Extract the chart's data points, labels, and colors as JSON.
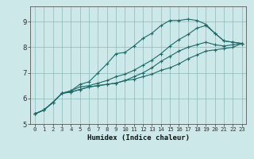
{
  "xlabel": "Humidex (Indice chaleur)",
  "bg_color": "#cce8e8",
  "grid_color": "#88bbbb",
  "line_color": "#1a6b6b",
  "xlim": [
    -0.5,
    23.5
  ],
  "ylim": [
    5.0,
    9.6
  ],
  "yticks": [
    5,
    6,
    7,
    8,
    9
  ],
  "xticks": [
    0,
    1,
    2,
    3,
    4,
    5,
    6,
    7,
    8,
    9,
    10,
    11,
    12,
    13,
    14,
    15,
    16,
    17,
    18,
    19,
    20,
    21,
    22,
    23
  ],
  "lines": [
    [
      5.4,
      5.55,
      5.85,
      6.2,
      6.3,
      6.55,
      6.65,
      7.0,
      7.35,
      7.75,
      7.8,
      8.05,
      8.35,
      8.55,
      8.85,
      9.05,
      9.05,
      9.1,
      9.05,
      8.9,
      8.55,
      8.25,
      8.2,
      8.15
    ],
    [
      5.4,
      5.55,
      5.85,
      6.2,
      6.3,
      6.45,
      6.5,
      6.6,
      6.7,
      6.85,
      6.95,
      7.1,
      7.3,
      7.5,
      7.75,
      8.05,
      8.3,
      8.5,
      8.75,
      8.85,
      8.55,
      8.25,
      8.2,
      8.15
    ],
    [
      5.4,
      5.55,
      5.85,
      6.2,
      6.25,
      6.35,
      6.45,
      6.5,
      6.55,
      6.6,
      6.7,
      6.85,
      7.0,
      7.2,
      7.45,
      7.65,
      7.85,
      8.0,
      8.1,
      8.2,
      8.1,
      8.05,
      8.1,
      8.15
    ],
    [
      5.4,
      5.55,
      5.85,
      6.2,
      6.25,
      6.35,
      6.45,
      6.5,
      6.55,
      6.6,
      6.7,
      6.75,
      6.85,
      6.95,
      7.1,
      7.2,
      7.35,
      7.55,
      7.7,
      7.85,
      7.9,
      7.95,
      8.0,
      8.15
    ]
  ]
}
